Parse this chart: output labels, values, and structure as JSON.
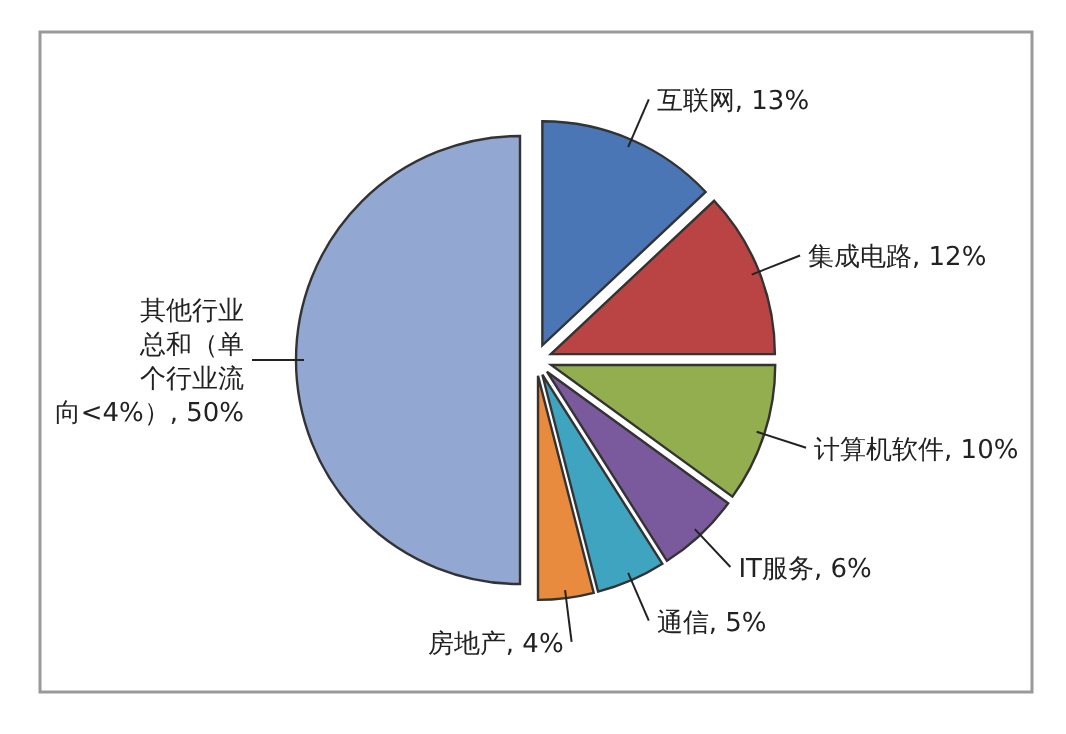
{
  "chart_data": {
    "type": "pie",
    "categories": [
      "互联网",
      "集成电路",
      "计算机软件",
      "IT服务",
      "通信",
      "房地产",
      "其他行业总和（单个行业流向<4%）"
    ],
    "values": [
      13,
      12,
      10,
      6,
      5,
      4,
      50
    ],
    "colors": [
      "#4a76b5",
      "#b94443",
      "#93ae4f",
      "#7a5a9c",
      "#3fa4c0",
      "#e88b3e",
      "#92a8d2"
    ],
    "value_labels": [
      "13%",
      "12%",
      "10%",
      "6%",
      "5%",
      "4%",
      "50%"
    ]
  }
}
